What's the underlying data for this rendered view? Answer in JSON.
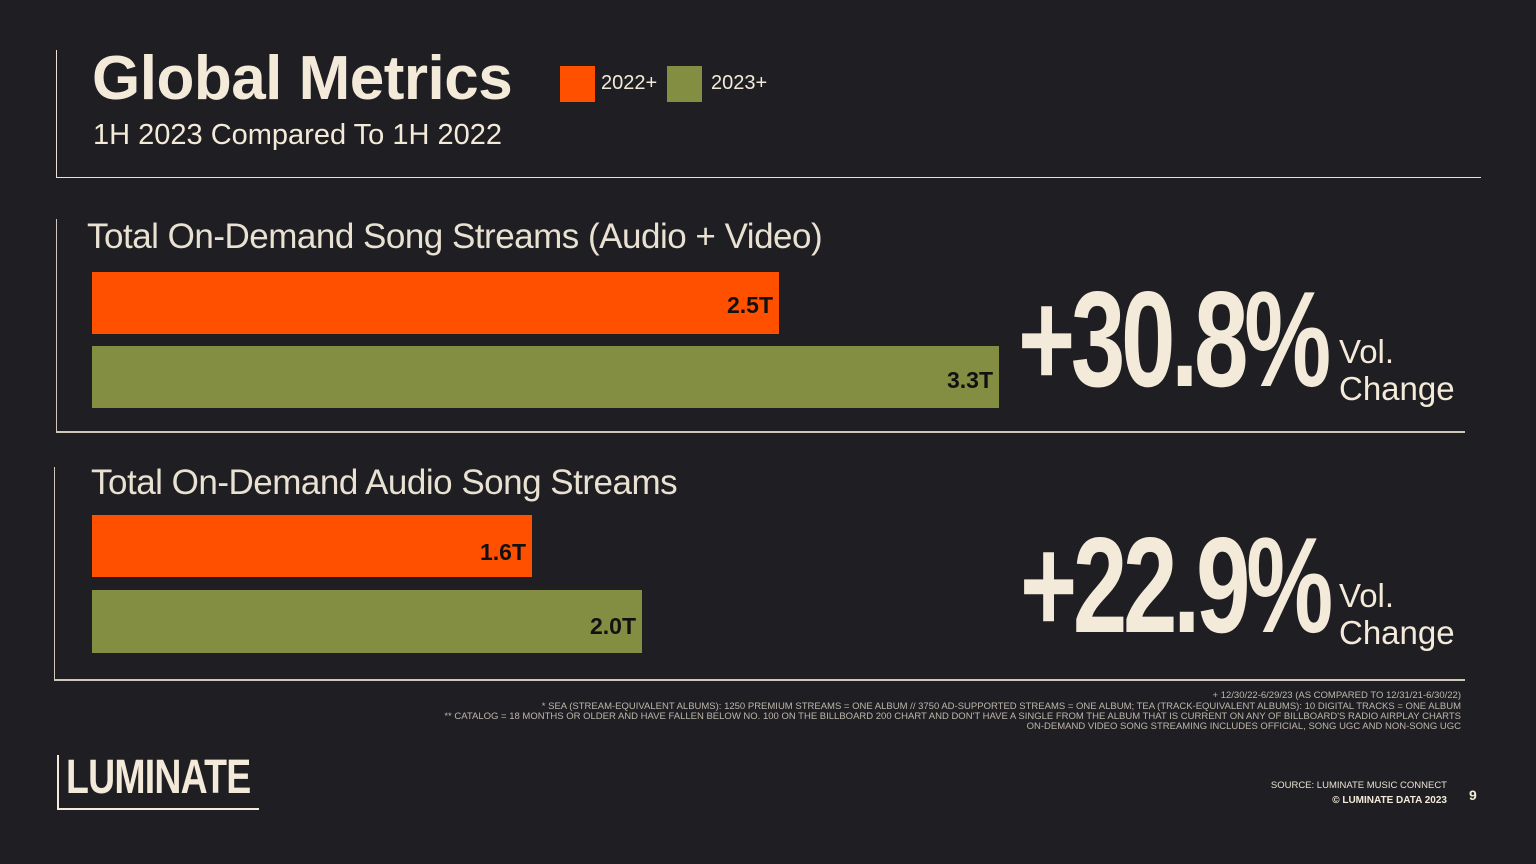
{
  "header": {
    "title": "Global Metrics",
    "subtitle": "1H 2023 Compared To 1H 2022",
    "legend": [
      {
        "label": "2022+",
        "color": "#ff5000"
      },
      {
        "label": "2023+",
        "color": "#848e43"
      }
    ]
  },
  "chart_data": [
    {
      "type": "bar",
      "orientation": "horizontal",
      "title": "Total On-Demand Song Streams (Audio + Video)",
      "unit": "T",
      "categories": [
        "2022+",
        "2023+"
      ],
      "values": [
        2.5,
        3.3
      ],
      "value_labels": [
        "2.5T",
        "3.3T"
      ],
      "colors": [
        "#ff5000",
        "#848e43"
      ],
      "xlim": [
        0,
        3.3
      ],
      "change": "+30.8%",
      "change_label_line1": "Vol.",
      "change_label_line2": "Change"
    },
    {
      "type": "bar",
      "orientation": "horizontal",
      "title": "Total On-Demand Audio Song Streams",
      "unit": "T",
      "categories": [
        "2022+",
        "2023+"
      ],
      "values": [
        1.6,
        2.0
      ],
      "value_labels": [
        "1.6T",
        "2.0T"
      ],
      "colors": [
        "#ff5000",
        "#848e43"
      ],
      "xlim": [
        0,
        3.3
      ],
      "change": "+22.9%",
      "change_label_line1": "Vol.",
      "change_label_line2": "Change"
    }
  ],
  "footnotes": [
    "+ 12/30/22-6/29/23 (AS COMPARED TO 12/31/21-6/30/22)",
    "* SEA (STREAM-EQUIVALENT ALBUMS): 1250 PREMIUM STREAMS = ONE ALBUM // 3750 AD-SUPPORTED STREAMS = ONE ALBUM; TEA (TRACK-EQUIVALENT ALBUMS): 10 DIGITAL TRACKS = ONE ALBUM",
    "** CATALOG = 18 MONTHS OR OLDER AND HAVE FALLEN BELOW NO. 100 ON THE BILLBOARD 200 CHART AND DON'T HAVE A SINGLE FROM THE ALBUM THAT IS CURRENT ON ANY OF BILLBOARD'S RADIO AIRPLAY CHARTS",
    "ON-DEMAND VIDEO SONG STREAMING INCLUDES OFFICIAL, SONG UGC AND NON-SONG UGC"
  ],
  "footer": {
    "logo": "LUMINATE",
    "source": "SOURCE: LUMINATE MUSIC CONNECT",
    "copyright": "© LUMINATE DATA 2023",
    "page_number": "9"
  }
}
